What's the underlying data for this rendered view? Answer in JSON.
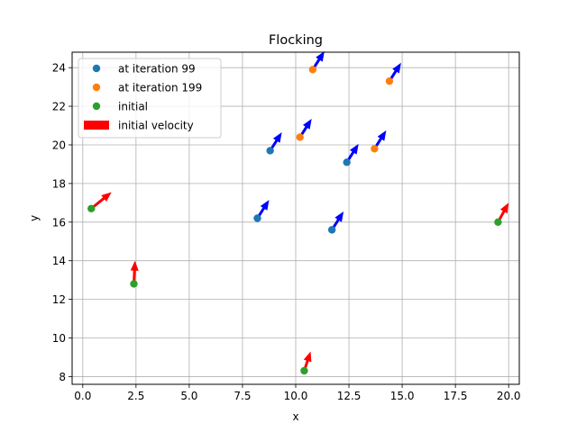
{
  "chart_data": {
    "type": "scatter",
    "title": "Flocking",
    "xlabel": "x",
    "ylabel": "y",
    "xlim": [
      -0.5,
      20.5
    ],
    "ylim": [
      7.6,
      24.8
    ],
    "xticks": [
      0.0,
      2.5,
      5.0,
      7.5,
      10.0,
      12.5,
      15.0,
      17.5,
      20.0
    ],
    "xtick_labels": [
      "0.0",
      "2.5",
      "5.0",
      "7.5",
      "10.0",
      "12.5",
      "15.0",
      "17.5",
      "20.0"
    ],
    "yticks": [
      8,
      10,
      12,
      14,
      16,
      18,
      20,
      22,
      24
    ],
    "ytick_labels": [
      "8",
      "10",
      "12",
      "14",
      "16",
      "18",
      "20",
      "22",
      "24"
    ],
    "grid": true,
    "legend_position": "top-left",
    "series": [
      {
        "name": "at iteration 99",
        "color": "#1f77b4",
        "arrow_color": "#0000ff",
        "points": [
          {
            "x": 8.8,
            "y": 19.7,
            "u": 0.55,
            "v": 0.95
          },
          {
            "x": 8.2,
            "y": 16.2,
            "u": 0.55,
            "v": 0.95
          },
          {
            "x": 12.4,
            "y": 19.1,
            "u": 0.55,
            "v": 0.95
          },
          {
            "x": 11.7,
            "y": 15.6,
            "u": 0.55,
            "v": 0.95
          }
        ]
      },
      {
        "name": "at iteration 199",
        "color": "#ff7f0e",
        "arrow_color": "#0000ff",
        "points": [
          {
            "x": 10.8,
            "y": 23.9,
            "u": 0.55,
            "v": 0.95
          },
          {
            "x": 14.4,
            "y": 23.3,
            "u": 0.55,
            "v": 0.95
          },
          {
            "x": 10.2,
            "y": 20.4,
            "u": 0.55,
            "v": 0.95
          },
          {
            "x": 13.7,
            "y": 19.8,
            "u": 0.55,
            "v": 0.95
          }
        ]
      },
      {
        "name": "initial",
        "color": "#2ca02c",
        "arrow_color": "#ff0000",
        "points": [
          {
            "x": 0.4,
            "y": 16.7,
            "u": 0.95,
            "v": 0.85
          },
          {
            "x": 2.4,
            "y": 12.8,
            "u": 0.05,
            "v": 1.2
          },
          {
            "x": 10.4,
            "y": 8.3,
            "u": 0.3,
            "v": 1.0
          },
          {
            "x": 19.5,
            "y": 16.0,
            "u": 0.5,
            "v": 1.0
          }
        ]
      }
    ],
    "legend": [
      {
        "label": "at iteration 99",
        "kind": "marker",
        "color": "#1f77b4"
      },
      {
        "label": "at iteration 199",
        "kind": "marker",
        "color": "#ff7f0e"
      },
      {
        "label": "initial",
        "kind": "marker",
        "color": "#2ca02c"
      },
      {
        "label": "initial velocity",
        "kind": "bar",
        "color": "#ff0000"
      }
    ]
  }
}
